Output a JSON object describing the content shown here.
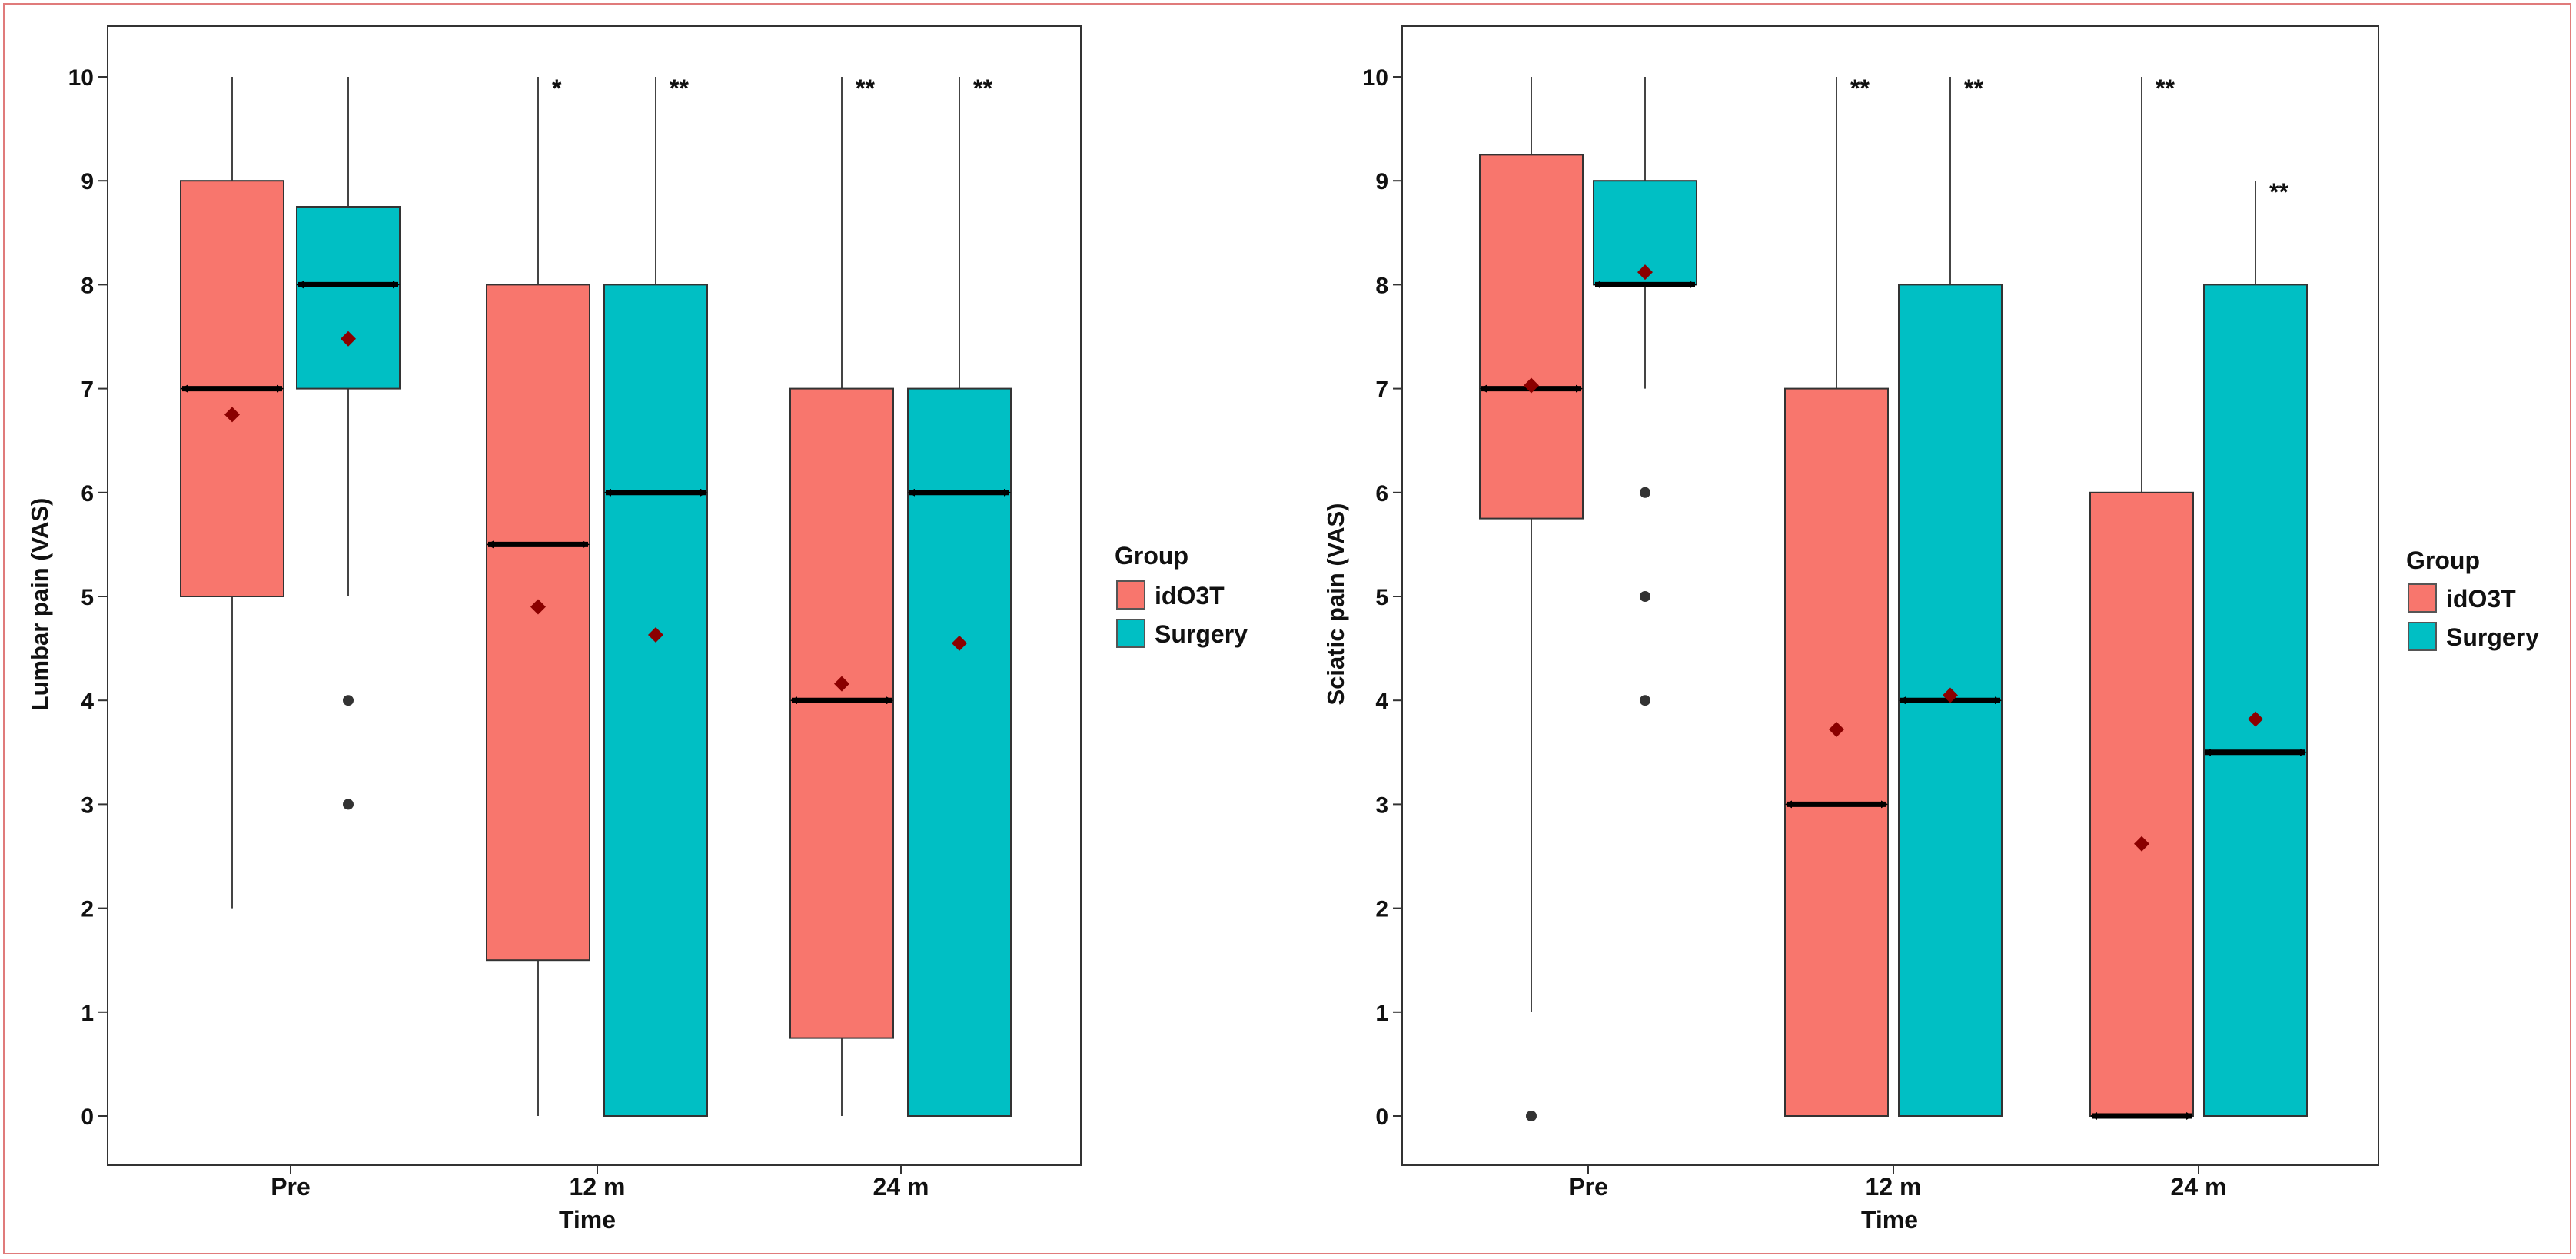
{
  "colors": {
    "idO3T": "#F8766D",
    "Surgery": "#00BFC4",
    "mean_marker": "#8B0000",
    "frame": "#e07b7b"
  },
  "chart_data": [
    {
      "type": "box",
      "ylabel": "Lumbar pain (VAS)",
      "xlabel": "Time",
      "ylim": [
        -0.5,
        10.5
      ],
      "yticks": [
        "0",
        "1",
        "2",
        "3",
        "4",
        "5",
        "6",
        "7",
        "8",
        "9",
        "10"
      ],
      "categories": [
        "Pre",
        "12 m",
        "24 m"
      ],
      "legend": {
        "title": "Group",
        "entries": [
          "idO3T",
          "Surgery"
        ]
      },
      "boxes": [
        {
          "category": "Pre",
          "group": "idO3T",
          "min": 2,
          "q1": 5,
          "median": 7,
          "q3": 9,
          "max": 10,
          "mean": 6.75,
          "outliers": [],
          "sig": ""
        },
        {
          "category": "Pre",
          "group": "Surgery",
          "min": 5,
          "q1": 7,
          "median": 8,
          "q3": 8.75,
          "max": 10,
          "mean": 7.48,
          "outliers": [
            4,
            3
          ],
          "sig": ""
        },
        {
          "category": "12 m",
          "group": "idO3T",
          "min": 0,
          "q1": 1.5,
          "median": 5.5,
          "q3": 8,
          "max": 10,
          "mean": 4.9,
          "outliers": [],
          "sig": "*"
        },
        {
          "category": "12 m",
          "group": "Surgery",
          "min": 0,
          "q1": 0,
          "median": 6,
          "q3": 8,
          "max": 10,
          "mean": 4.63,
          "outliers": [],
          "sig": "**"
        },
        {
          "category": "24 m",
          "group": "idO3T",
          "min": 0,
          "q1": 0.75,
          "median": 4,
          "q3": 7,
          "max": 10,
          "mean": 4.16,
          "outliers": [],
          "sig": "**"
        },
        {
          "category": "24 m",
          "group": "Surgery",
          "min": 0,
          "q1": 0,
          "median": 6,
          "q3": 7,
          "max": 10,
          "mean": 4.55,
          "outliers": [],
          "sig": "**"
        }
      ]
    },
    {
      "type": "box",
      "ylabel": "Sciatic pain (VAS)",
      "xlabel": "Time",
      "ylim": [
        -0.5,
        10.5
      ],
      "yticks": [
        "0",
        "1",
        "2",
        "3",
        "4",
        "5",
        "6",
        "7",
        "8",
        "9",
        "10"
      ],
      "categories": [
        "Pre",
        "12 m",
        "24 m"
      ],
      "legend": {
        "title": "Group",
        "entries": [
          "idO3T",
          "Surgery"
        ]
      },
      "boxes": [
        {
          "category": "Pre",
          "group": "idO3T",
          "min": 1,
          "q1": 5.75,
          "median": 7,
          "q3": 9.25,
          "max": 10,
          "mean": 7.03,
          "outliers": [
            0
          ],
          "sig": ""
        },
        {
          "category": "Pre",
          "group": "Surgery",
          "min": 7,
          "q1": 8,
          "median": 8,
          "q3": 9,
          "max": 10,
          "mean": 8.12,
          "outliers": [
            6,
            5,
            4
          ],
          "sig": ""
        },
        {
          "category": "12 m",
          "group": "idO3T",
          "min": 0,
          "q1": 0,
          "median": 3,
          "q3": 7,
          "max": 10,
          "mean": 3.72,
          "outliers": [],
          "sig": "**"
        },
        {
          "category": "12 m",
          "group": "Surgery",
          "min": 0,
          "q1": 0,
          "median": 4,
          "q3": 8,
          "max": 10,
          "mean": 4.05,
          "outliers": [],
          "sig": "**"
        },
        {
          "category": "24 m",
          "group": "idO3T",
          "min": 0,
          "q1": 0,
          "median": 0,
          "q3": 6,
          "max": 10,
          "mean": 2.62,
          "outliers": [],
          "sig": "**"
        },
        {
          "category": "24 m",
          "group": "Surgery",
          "min": 0,
          "q1": 0,
          "median": 3.5,
          "q3": 8,
          "max": 9,
          "mean": 3.82,
          "outliers": [],
          "sig": "**"
        }
      ]
    }
  ]
}
